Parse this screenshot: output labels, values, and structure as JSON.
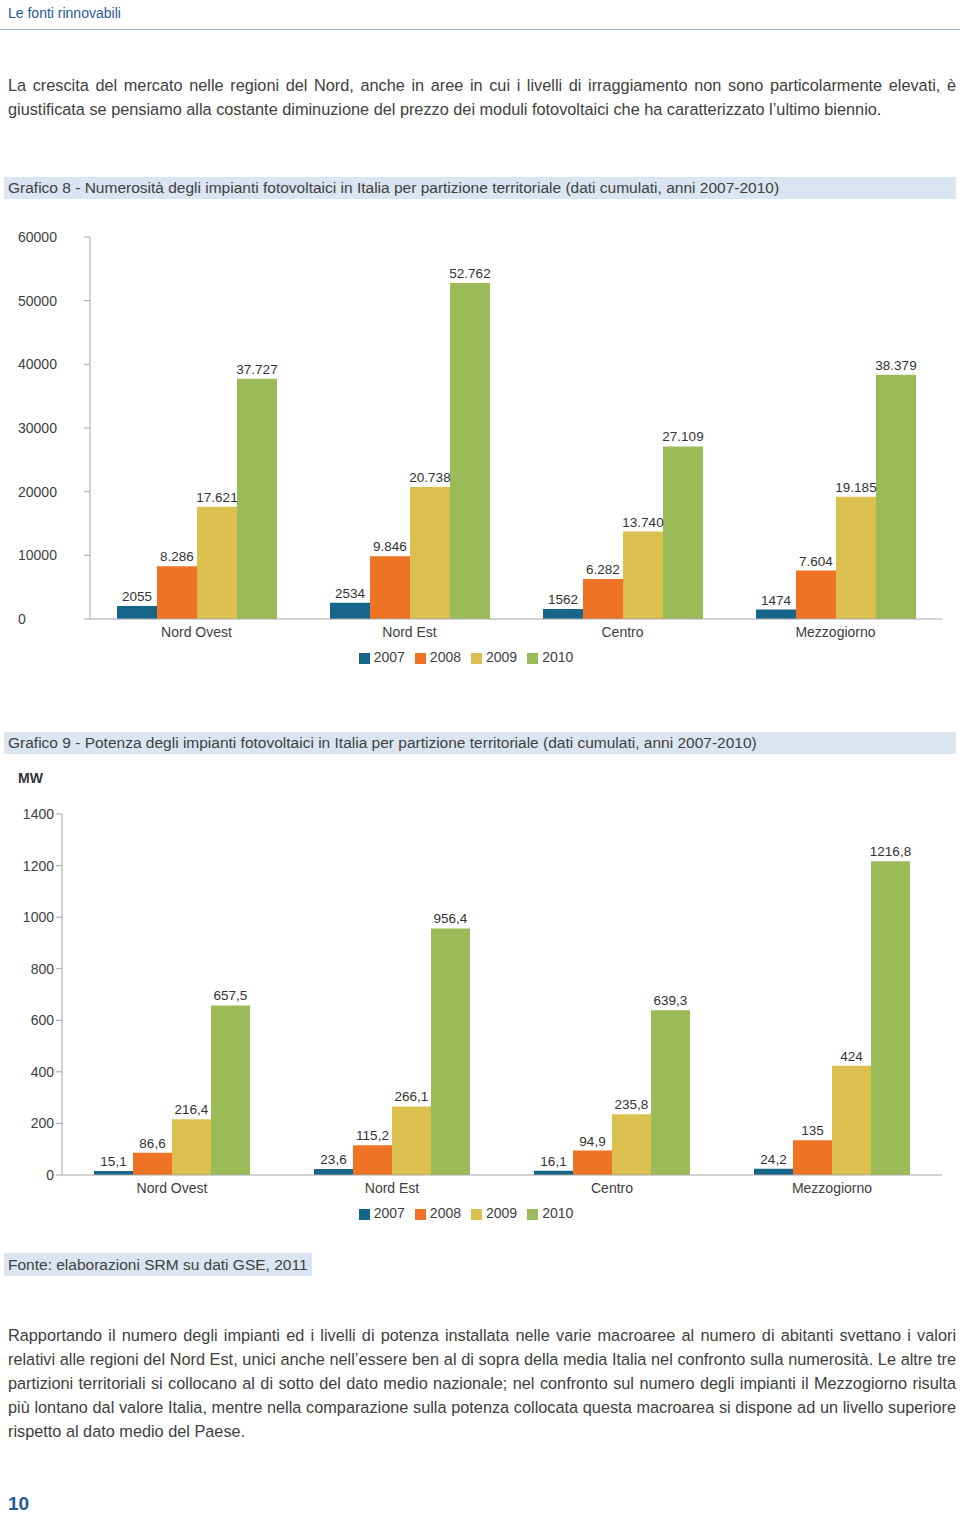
{
  "header": "Le fonti rinnovabili",
  "intro": "La crescita del mercato nelle regioni del Nord, anche in aree in cui i livelli di irraggiamento non sono particolarmente elevati, è giustificata se pensiamo alla costante diminuzione del prezzo dei moduli fotovoltaici che ha caratterizzato l’ultimo biennio.",
  "chart_data": [
    {
      "type": "bar",
      "title": "Grafico 8 - Numerosità degli impianti fotovoltaici in Italia per partizione territoriale (dati cumulati, anni 2007-2010)",
      "categories": [
        "Nord Ovest",
        "Nord Est",
        "Centro",
        "Mezzogiorno"
      ],
      "series": [
        {
          "name": "2007",
          "color": "#17668a",
          "values": [
            2055,
            2534,
            1562,
            1474
          ],
          "value_labels": [
            "2055",
            "2534",
            "1562",
            "1474"
          ]
        },
        {
          "name": "2008",
          "color": "#ee7325",
          "values": [
            8286,
            9846,
            6282,
            7604
          ],
          "value_labels": [
            "8.286",
            "9.846",
            "6.282",
            "7.604"
          ]
        },
        {
          "name": "2009",
          "color": "#dcc04f",
          "values": [
            17621,
            20738,
            13740,
            19185
          ],
          "value_labels": [
            "17.621",
            "20.738",
            "13.740",
            "19.185"
          ]
        },
        {
          "name": "2010",
          "color": "#9bbb59",
          "values": [
            37727,
            52762,
            27109,
            38379
          ],
          "value_labels": [
            "37.727",
            "52.762",
            "27.109",
            "38.379"
          ]
        }
      ],
      "ylim": [
        0,
        60000
      ],
      "yticks": [
        0,
        10000,
        20000,
        30000,
        40000,
        50000,
        60000
      ],
      "grid": false,
      "legend": "bottom",
      "data_labels": true
    },
    {
      "type": "bar",
      "title": "Grafico 9 - Potenza degli impianti fotovoltaici in Italia per partizione territoriale (dati cumulati, anni 2007-2010)",
      "y_label": "MW",
      "categories": [
        "Nord Ovest",
        "Nord Est",
        "Centro",
        "Mezzogiorno"
      ],
      "series": [
        {
          "name": "2007",
          "color": "#17668a",
          "values": [
            15.1,
            23.6,
            16.1,
            24.2
          ],
          "value_labels": [
            "15,1",
            "23,6",
            "16,1",
            "24,2"
          ]
        },
        {
          "name": "2008",
          "color": "#ee7325",
          "values": [
            86.6,
            115.2,
            94.9,
            135
          ],
          "value_labels": [
            "86,6",
            "115,2",
            "94,9",
            "135"
          ]
        },
        {
          "name": "2009",
          "color": "#dcc04f",
          "values": [
            216.4,
            266.1,
            235.8,
            424
          ],
          "value_labels": [
            "216,4",
            "266,1",
            "235,8",
            "424"
          ]
        },
        {
          "name": "2010",
          "color": "#9bbb59",
          "values": [
            657.5,
            956.4,
            639.3,
            1216.8
          ],
          "value_labels": [
            "657,5",
            "956,4",
            "639,3",
            "1216,8"
          ]
        }
      ],
      "ylim": [
        0,
        1400
      ],
      "yticks": [
        0,
        200,
        400,
        600,
        800,
        1000,
        1200,
        1400
      ],
      "grid": false,
      "legend": "bottom",
      "data_labels": true
    }
  ],
  "source": "Fonte: elaborazioni SRM su dati GSE, 2011",
  "body": "Rapportando il numero degli impianti ed i livelli di potenza installata nelle varie macroaree al numero di abitanti svettano i valori relativi alle regioni del Nord Est, unici anche nell’essere ben al di sopra della media Italia nel confronto sulla numerosità. Le altre tre partizioni territoriali si collocano al di sotto del dato medio nazionale; nel confronto sul numero degli impianti il Mezzogiorno risulta più lontano dal valore Italia, mentre nella comparazione sulla potenza collocata questa macroarea si dispone ad un livello superiore rispetto al dato medio del Paese.",
  "page_number": "10"
}
